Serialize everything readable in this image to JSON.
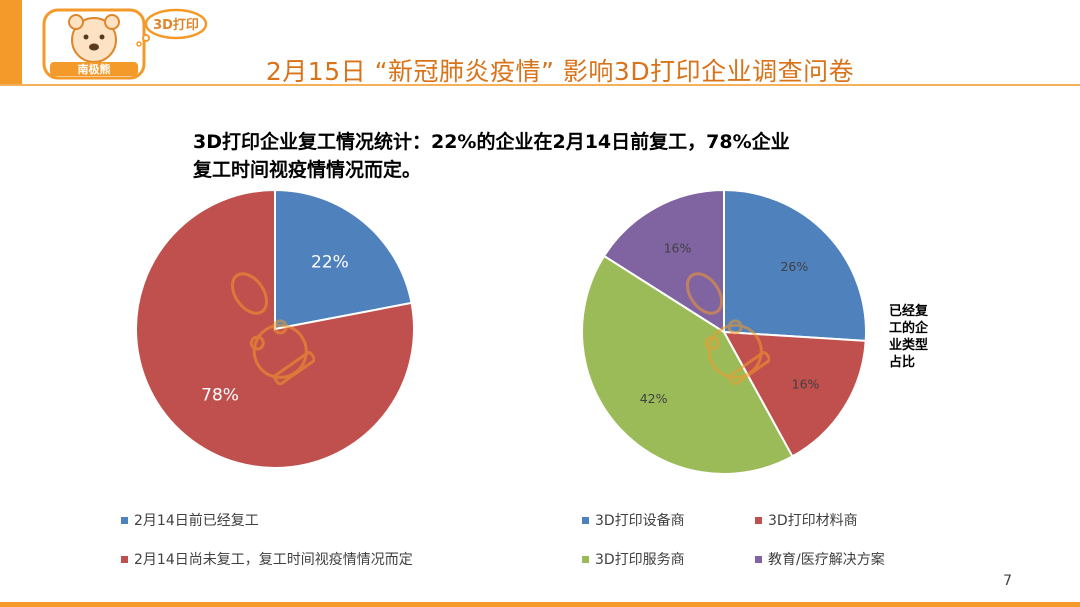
{
  "header": {
    "title": "2月15日 “新冠肺炎疫情” 影响3D打印企业调查问卷",
    "logo": {
      "badge_text": "3D打印",
      "name_text": "南极熊"
    }
  },
  "subtitle": {
    "line1": "3D打印企业复工情况统计：22%的企业在2月14日前复工，78%企业",
    "line2": "复工时间视疫情情况而定。"
  },
  "colors": {
    "accent": "#f39a2b",
    "title": "#d9731a",
    "blue": "#4f81bd",
    "red": "#c0504d",
    "green": "#9bbb59",
    "purple": "#8064a2"
  },
  "chart_data": [
    {
      "type": "pie",
      "series": [
        {
          "name": "2月14日前已经复工",
          "value": 22,
          "label": "22%",
          "color": "#4f81bd"
        },
        {
          "name": "2月14日尚未复工，复工时间视疫情情况而定",
          "value": 78,
          "label": "78%",
          "color": "#c0504d"
        }
      ],
      "legend_position": "bottom"
    },
    {
      "type": "pie",
      "title": "已经复工的企业类型占比",
      "series": [
        {
          "name": "3D打印设备商",
          "value": 26,
          "label": "26%",
          "color": "#4f81bd"
        },
        {
          "name": "3D打印材料商",
          "value": 16,
          "label": "16%",
          "color": "#c0504d"
        },
        {
          "name": "3D打印服务商",
          "value": 42,
          "label": "42%",
          "color": "#9bbb59"
        },
        {
          "name": "教育/医疗解决方案",
          "value": 16,
          "label": "16%",
          "color": "#8064a2"
        }
      ],
      "legend_position": "bottom"
    }
  ],
  "page_number": "7"
}
